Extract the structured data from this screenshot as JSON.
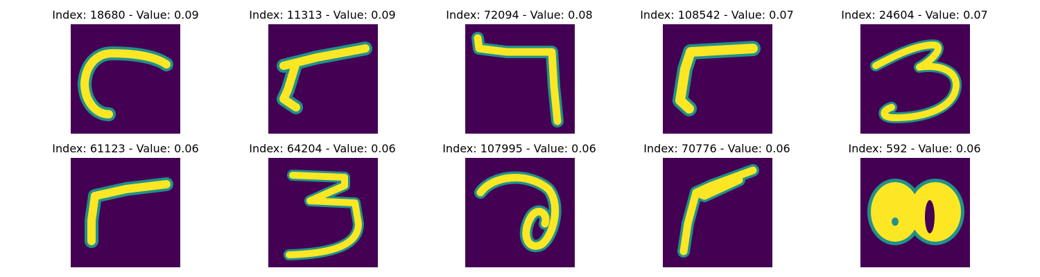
{
  "colors": {
    "background": "#440154",
    "mid": "#21918c",
    "stroke": "#fde725"
  },
  "panels": [
    {
      "title": "Index: 18680 - Value: 0.09",
      "digit_shape": "curved-hook"
    },
    {
      "title": "Index: 11313 - Value: 0.09",
      "digit_shape": "angled-seven"
    },
    {
      "title": "Index: 72094 - Value: 0.08",
      "digit_shape": "seven"
    },
    {
      "title": "Index: 108542 - Value: 0.07",
      "digit_shape": "angled-seven"
    },
    {
      "title": "Index: 24604 - Value: 0.07",
      "digit_shape": "three"
    },
    {
      "title": "Index: 61123 - Value: 0.06",
      "digit_shape": "angled-seven"
    },
    {
      "title": "Index: 64204 - Value: 0.06",
      "digit_shape": "three"
    },
    {
      "title": "Index: 107995 - Value: 0.06",
      "digit_shape": "loop"
    },
    {
      "title": "Index: 70776 - Value: 0.06",
      "digit_shape": "angled-seven"
    },
    {
      "title": "Index: 592 - Value: 0.06",
      "digit_shape": "blob-eight"
    }
  ]
}
